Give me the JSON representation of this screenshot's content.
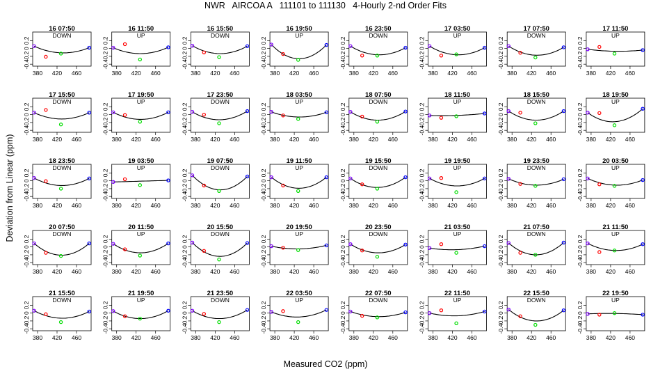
{
  "title": "NWR   AIRCOA A   111101 to 111130   4-Hourly 2-nd Order Fits",
  "xlabel": "Measured CO2 (ppm)",
  "ylabel": "Deviation from Linear (ppm)",
  "colors": {
    "standard1": "#7f00ff",
    "standard2": "#ff0000",
    "standard3": "#00dd00",
    "standard4": "#0000ff",
    "fit": "#000000"
  },
  "chart_data": {
    "type": "scatter",
    "panels_layout": "5 rows x 8 columns",
    "xlim": [
      370,
      490
    ],
    "ylim": [
      -0.45,
      0.42
    ],
    "x_ticks": [
      380,
      420,
      460
    ],
    "y_ticks": [
      -0.4,
      -0.2,
      0.0,
      0.2
    ],
    "y_tick_labels": [
      "-0.4",
      "-0.2",
      "0",
      "0.2"
    ],
    "standards_x": [
      373,
      397,
      428,
      486
    ],
    "panels": [
      {
        "label": "16 07:50",
        "dir": "DOWN",
        "y": [
          0.06,
          -0.21,
          -0.13,
          0.02
        ],
        "curve": [
          0.06,
          -0.11,
          0.02
        ]
      },
      {
        "label": "16 11:50",
        "dir": "UP",
        "y": [
          0.02,
          0.11,
          -0.28,
          0.03
        ],
        "curve": [
          0.02,
          -0.13,
          0.03
        ]
      },
      {
        "label": "16 15:50",
        "dir": "DOWN",
        "y": [
          0.07,
          -0.1,
          -0.22,
          0.06
        ],
        "curve": [
          0.07,
          -0.13,
          0.06
        ]
      },
      {
        "label": "16 19:50",
        "dir": "UP",
        "y": [
          0.1,
          -0.14,
          -0.29,
          0.09
        ],
        "curve": [
          0.1,
          -0.26,
          0.09
        ]
      },
      {
        "label": "16 23:50",
        "dir": "DOWN",
        "y": [
          0.06,
          -0.18,
          -0.18,
          0.02
        ],
        "curve": [
          0.06,
          -0.16,
          0.02
        ]
      },
      {
        "label": "17 03:50",
        "dir": "UP",
        "y": [
          0.06,
          -0.18,
          -0.15,
          0.02
        ],
        "curve": [
          0.06,
          -0.16,
          0.02
        ]
      },
      {
        "label": "17 07:50",
        "dir": "DOWN",
        "y": [
          0.06,
          -0.11,
          -0.23,
          0.03
        ],
        "curve": [
          0.06,
          -0.17,
          0.03
        ]
      },
      {
        "label": "17 11:50",
        "dir": "UP",
        "y": [
          -0.02,
          0.04,
          -0.13,
          -0.04
        ],
        "curve": [
          -0.02,
          -0.07,
          -0.04
        ]
      },
      {
        "label": "17 15:50",
        "dir": "DOWN",
        "y": [
          0.05,
          0.12,
          -0.25,
          0.05
        ],
        "curve": [
          0.05,
          -0.11,
          0.05
        ]
      },
      {
        "label": "17 19:50",
        "dir": "UP",
        "y": [
          0.06,
          -0.01,
          -0.18,
          0.06
        ],
        "curve": [
          0.06,
          -0.12,
          0.06
        ]
      },
      {
        "label": "17 23:50",
        "dir": "DOWN",
        "y": [
          0.07,
          -0.0,
          -0.22,
          0.09
        ],
        "curve": [
          0.07,
          -0.13,
          0.09
        ]
      },
      {
        "label": "18 03:50",
        "dir": "UP",
        "y": [
          0.07,
          -0.02,
          -0.11,
          0.06
        ],
        "curve": [
          0.07,
          -0.06,
          0.06
        ]
      },
      {
        "label": "18 07:50",
        "dir": "DOWN",
        "y": [
          0.07,
          -0.05,
          -0.18,
          0.08
        ],
        "curve": [
          0.07,
          -0.14,
          0.08
        ]
      },
      {
        "label": "18 11:50",
        "dir": "UP",
        "y": [
          -0.02,
          -0.08,
          -0.04,
          0.03
        ],
        "curve": [
          -0.02,
          -0.02,
          0.03
        ]
      },
      {
        "label": "18 15:50",
        "dir": "DOWN",
        "y": [
          0.09,
          0.05,
          -0.22,
          0.09
        ],
        "curve": [
          0.09,
          -0.14,
          0.09
        ]
      },
      {
        "label": "18 19:50",
        "dir": "UP",
        "y": [
          0.05,
          0.04,
          -0.27,
          0.15
        ],
        "curve": [
          0.05,
          -0.18,
          0.15
        ]
      },
      {
        "label": "18 23:50",
        "dir": "DOWN",
        "y": [
          0.07,
          -0.01,
          -0.2,
          0.06
        ],
        "curve": [
          0.07,
          -0.12,
          0.06
        ]
      },
      {
        "label": "19 03:50",
        "dir": "UP",
        "y": [
          -0.03,
          0.04,
          -0.11,
          0.01
        ],
        "curve": [
          -0.03,
          -0.01,
          0.01
        ]
      },
      {
        "label": "19 07:50",
        "dir": "DOWN",
        "y": [
          0.14,
          -0.12,
          -0.26,
          0.11
        ],
        "curve": [
          0.14,
          -0.23,
          0.11
        ]
      },
      {
        "label": "19 11:50",
        "dir": "UP",
        "y": [
          0.09,
          -0.12,
          -0.26,
          0.09
        ],
        "curve": [
          0.09,
          -0.19,
          0.09
        ]
      },
      {
        "label": "19 15:50",
        "dir": "DOWN",
        "y": [
          0.06,
          -0.09,
          -0.2,
          0.09
        ],
        "curve": [
          0.06,
          -0.17,
          0.09
        ]
      },
      {
        "label": "19 19:50",
        "dir": "UP",
        "y": [
          0.06,
          0.07,
          -0.29,
          0.06
        ],
        "curve": [
          0.06,
          -0.13,
          0.06
        ]
      },
      {
        "label": "19 23:50",
        "dir": "DOWN",
        "y": [
          0.05,
          -0.08,
          -0.13,
          0.04
        ],
        "curve": [
          0.05,
          -0.11,
          0.04
        ]
      },
      {
        "label": "20 03:50",
        "dir": "UP",
        "y": [
          0.06,
          -0.09,
          -0.13,
          0.02
        ],
        "curve": [
          0.06,
          -0.11,
          0.02
        ]
      },
      {
        "label": "20 07:50",
        "dir": "DOWN",
        "y": [
          0.09,
          -0.15,
          -0.23,
          0.09
        ],
        "curve": [
          0.09,
          -0.21,
          0.09
        ]
      },
      {
        "label": "20 11:50",
        "dir": "UP",
        "y": [
          0.08,
          -0.06,
          -0.22,
          0.09
        ],
        "curve": [
          0.08,
          -0.15,
          0.09
        ]
      },
      {
        "label": "20 15:50",
        "dir": "DOWN",
        "y": [
          0.11,
          -0.1,
          -0.32,
          0.1
        ],
        "curve": [
          0.11,
          -0.24,
          0.1
        ]
      },
      {
        "label": "20 19:50",
        "dir": "UP",
        "y": [
          0.02,
          -0.02,
          -0.08,
          0.04
        ],
        "curve": [
          0.02,
          -0.05,
          0.04
        ]
      },
      {
        "label": "20 23:50",
        "dir": "DOWN",
        "y": [
          0.07,
          -0.09,
          -0.25,
          0.06
        ],
        "curve": [
          0.07,
          -0.15,
          0.06
        ]
      },
      {
        "label": "21 03:50",
        "dir": "UP",
        "y": [
          -0.03,
          0.07,
          -0.15,
          0.02
        ],
        "curve": [
          -0.03,
          -0.07,
          0.02
        ]
      },
      {
        "label": "21 07:50",
        "dir": "DOWN",
        "y": [
          0.1,
          -0.15,
          -0.2,
          0.11
        ],
        "curve": [
          0.1,
          -0.2,
          0.11
        ]
      },
      {
        "label": "21 11:50",
        "dir": "UP",
        "y": [
          0.09,
          -0.13,
          -0.09,
          0.07
        ],
        "curve": [
          0.09,
          -0.09,
          0.07
        ]
      },
      {
        "label": "21 15:50",
        "dir": "DOWN",
        "y": [
          0.06,
          -0.03,
          -0.23,
          0.04
        ],
        "curve": [
          0.06,
          -0.13,
          0.04
        ]
      },
      {
        "label": "21 19:50",
        "dir": "UP",
        "y": [
          0.05,
          -0.08,
          -0.14,
          0.06
        ],
        "curve": [
          0.05,
          -0.14,
          0.06
        ]
      },
      {
        "label": "21 23:50",
        "dir": "DOWN",
        "y": [
          0.06,
          -0.02,
          -0.23,
          0.08
        ],
        "curve": [
          0.06,
          -0.14,
          0.08
        ]
      },
      {
        "label": "22 03:50",
        "dir": "UP",
        "y": [
          0.03,
          0.05,
          -0.23,
          0.08
        ],
        "curve": [
          0.03,
          -0.1,
          0.08
        ]
      },
      {
        "label": "22 07:50",
        "dir": "DOWN",
        "y": [
          0.04,
          -0.07,
          -0.11,
          0.02
        ],
        "curve": [
          0.04,
          -0.09,
          0.02
        ]
      },
      {
        "label": "22 11:50",
        "dir": "UP",
        "y": [
          -0.0,
          0.07,
          -0.26,
          0.04
        ],
        "curve": [
          -0.0,
          -0.07,
          0.04
        ]
      },
      {
        "label": "22 15:50",
        "dir": "DOWN",
        "y": [
          0.09,
          -0.08,
          -0.3,
          0.07
        ],
        "curve": [
          0.09,
          -0.2,
          0.07
        ]
      },
      {
        "label": "22 19:50",
        "dir": "UP",
        "y": [
          -0.02,
          -0.04,
          -0.0,
          -0.04
        ],
        "curve": [
          -0.02,
          -0.01,
          -0.04
        ]
      }
    ]
  }
}
